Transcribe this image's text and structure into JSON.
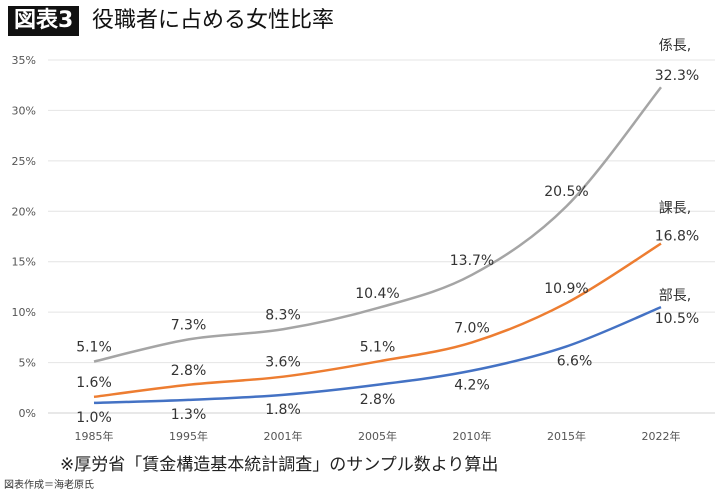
{
  "header": {
    "badge": "図表3",
    "title": "役職者に占める女性比率"
  },
  "footer": {
    "note": "※厚労省「賃金構造基本統計調査」のサンプル数より算出",
    "credit": "図表作成＝海老原氏"
  },
  "chart_data": {
    "type": "line",
    "title": "役職者に占める女性比率",
    "categories": [
      "1985年",
      "1995年",
      "2001年",
      "2005年",
      "2010年",
      "2015年",
      "2022年"
    ],
    "ylim": [
      0,
      35
    ],
    "yticks": [
      "0%",
      "5%",
      "10%",
      "15%",
      "20%",
      "25%",
      "30%",
      "35%"
    ],
    "grid": true,
    "series": [
      {
        "name": "係長,",
        "color": "#a5a5a5",
        "values": [
          5.1,
          7.3,
          8.3,
          10.4,
          13.7,
          20.5,
          32.3
        ],
        "labels": [
          "5.1%",
          "7.3%",
          "8.3%",
          "10.4%",
          "13.7%",
          "20.5%",
          "32.3%"
        ]
      },
      {
        "name": "課長,",
        "color": "#ed7d31",
        "values": [
          1.6,
          2.8,
          3.6,
          5.1,
          7.0,
          10.9,
          16.8
        ],
        "labels": [
          "1.6%",
          "2.8%",
          "3.6%",
          "5.1%",
          "7.0%",
          "10.9%",
          "16.8%"
        ]
      },
      {
        "name": "部長,",
        "color": "#4472c4",
        "values": [
          1.0,
          1.3,
          1.8,
          2.8,
          4.2,
          6.6,
          10.5
        ],
        "labels": [
          "1.0%",
          "1.3%",
          "1.8%",
          "2.8%",
          "4.2%",
          "6.6%",
          "10.5%"
        ]
      }
    ]
  }
}
